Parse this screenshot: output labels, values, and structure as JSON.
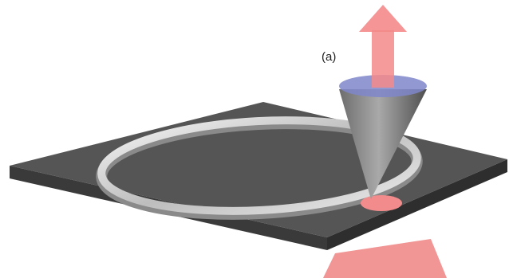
{
  "label": "(a)"
}
